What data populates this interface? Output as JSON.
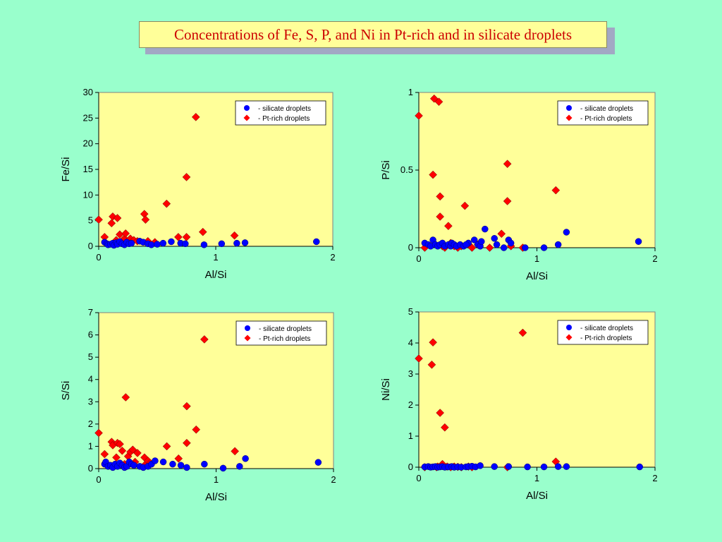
{
  "page": {
    "title": "Concentrations of Fe, S, P, and Ni in Pt-rich and in silicate droplets",
    "background": "#99ffcc",
    "plot_background": "#ffff99",
    "title_color": "#cc0000"
  },
  "chart_data": [
    {
      "type": "scatter",
      "xlabel": "Al/Si",
      "ylabel": "Fe/Si",
      "xlim": [
        0,
        2
      ],
      "ylim": [
        0,
        30
      ],
      "xticks": [
        "0",
        "1",
        "2"
      ],
      "yticks": [
        "0",
        "5",
        "10",
        "15",
        "20",
        "25",
        "30"
      ],
      "legend_position": "top-right",
      "series": [
        {
          "name": "- silicate droplets",
          "marker": "circle",
          "color": "#0000ff",
          "points": [
            [
              0.05,
              0.8
            ],
            [
              0.07,
              0.5
            ],
            [
              0.08,
              0.3
            ],
            [
              0.1,
              0.4
            ],
            [
              0.12,
              0.6
            ],
            [
              0.13,
              0.2
            ],
            [
              0.15,
              0.7
            ],
            [
              0.16,
              0.4
            ],
            [
              0.18,
              0.9
            ],
            [
              0.2,
              0.5
            ],
            [
              0.22,
              0.3
            ],
            [
              0.24,
              0.8
            ],
            [
              0.26,
              0.5
            ],
            [
              0.28,
              0.6
            ],
            [
              0.35,
              1.0
            ],
            [
              0.38,
              0.8
            ],
            [
              0.42,
              0.5
            ],
            [
              0.45,
              0.3
            ],
            [
              0.5,
              0.4
            ],
            [
              0.55,
              0.6
            ],
            [
              0.62,
              0.9
            ],
            [
              0.7,
              0.6
            ],
            [
              0.74,
              0.5
            ],
            [
              0.9,
              0.3
            ],
            [
              1.05,
              0.5
            ],
            [
              1.18,
              0.6
            ],
            [
              1.25,
              0.7
            ],
            [
              1.86,
              0.9
            ]
          ]
        },
        {
          "name": "- Pt-rich droplets",
          "marker": "diamond",
          "color": "#ff0000",
          "points": [
            [
              0.0,
              5.2
            ],
            [
              0.05,
              1.8
            ],
            [
              0.11,
              4.5
            ],
            [
              0.12,
              5.8
            ],
            [
              0.15,
              1.2
            ],
            [
              0.16,
              5.5
            ],
            [
              0.18,
              2.3
            ],
            [
              0.2,
              1.0
            ],
            [
              0.22,
              1.5
            ],
            [
              0.23,
              2.5
            ],
            [
              0.25,
              0.8
            ],
            [
              0.27,
              1.5
            ],
            [
              0.3,
              1.2
            ],
            [
              0.33,
              1.0
            ],
            [
              0.39,
              6.3
            ],
            [
              0.4,
              5.2
            ],
            [
              0.42,
              1.0
            ],
            [
              0.48,
              0.8
            ],
            [
              0.58,
              8.3
            ],
            [
              0.68,
              1.8
            ],
            [
              0.75,
              1.8
            ],
            [
              0.75,
              13.5
            ],
            [
              0.83,
              25.2
            ],
            [
              0.89,
              2.8
            ],
            [
              1.16,
              2.1
            ]
          ]
        }
      ]
    },
    {
      "type": "scatter",
      "xlabel": "Al/Si",
      "ylabel": "P/Si",
      "xlim": [
        0,
        2
      ],
      "ylim": [
        0,
        1
      ],
      "xticks": [
        "0",
        "1",
        "2"
      ],
      "yticks": [
        "0",
        "0.5",
        "1"
      ],
      "legend_position": "top-right",
      "series": [
        {
          "name": "- silicate droplets",
          "marker": "circle",
          "color": "#0000ff",
          "points": [
            [
              0.05,
              0.03
            ],
            [
              0.08,
              0.02
            ],
            [
              0.1,
              0.01
            ],
            [
              0.12,
              0.05
            ],
            [
              0.14,
              0.02
            ],
            [
              0.16,
              0.01
            ],
            [
              0.18,
              0.02
            ],
            [
              0.2,
              0.03
            ],
            [
              0.22,
              0.01
            ],
            [
              0.25,
              0.02
            ],
            [
              0.27,
              0.01
            ],
            [
              0.28,
              0.03
            ],
            [
              0.3,
              0.02
            ],
            [
              0.32,
              0.01
            ],
            [
              0.35,
              0.02
            ],
            [
              0.38,
              0.01
            ],
            [
              0.42,
              0.03
            ],
            [
              0.4,
              0.02
            ],
            [
              0.47,
              0.05
            ],
            [
              0.5,
              0.02
            ],
            [
              0.52,
              0.01
            ],
            [
              0.53,
              0.04
            ],
            [
              0.56,
              0.12
            ],
            [
              0.64,
              0.06
            ],
            [
              0.66,
              0.02
            ],
            [
              0.72,
              0.0
            ],
            [
              0.76,
              0.05
            ],
            [
              0.78,
              0.03
            ],
            [
              0.9,
              0.0
            ],
            [
              1.06,
              0.0
            ],
            [
              1.18,
              0.02
            ],
            [
              1.25,
              0.1
            ],
            [
              1.86,
              0.04
            ]
          ]
        },
        {
          "name": "- Pt-rich droplets",
          "marker": "diamond",
          "color": "#ff0000",
          "points": [
            [
              0.0,
              0.85
            ],
            [
              0.05,
              0.0
            ],
            [
              0.12,
              0.47
            ],
            [
              0.13,
              0.96
            ],
            [
              0.17,
              0.94
            ],
            [
              0.18,
              0.33
            ],
            [
              0.18,
              0.2
            ],
            [
              0.2,
              0.01
            ],
            [
              0.22,
              0.0
            ],
            [
              0.25,
              0.14
            ],
            [
              0.27,
              0.03
            ],
            [
              0.3,
              0.01
            ],
            [
              0.33,
              0.0
            ],
            [
              0.36,
              0.01
            ],
            [
              0.39,
              0.27
            ],
            [
              0.42,
              0.02
            ],
            [
              0.45,
              0.0
            ],
            [
              0.5,
              0.02
            ],
            [
              0.6,
              0.0
            ],
            [
              0.7,
              0.09
            ],
            [
              0.75,
              0.54
            ],
            [
              0.75,
              0.3
            ],
            [
              0.78,
              0.01
            ],
            [
              0.88,
              0.0
            ],
            [
              1.16,
              0.37
            ]
          ]
        }
      ]
    },
    {
      "type": "scatter",
      "xlabel": "Al/Si",
      "ylabel": "S/Si",
      "xlim": [
        0,
        2
      ],
      "ylim": [
        0,
        7
      ],
      "xticks": [
        "0",
        "1",
        "2"
      ],
      "yticks": [
        "0",
        "1",
        "2",
        "3",
        "4",
        "5",
        "6",
        "7"
      ],
      "legend_position": "top-right",
      "series": [
        {
          "name": "- silicate droplets",
          "marker": "circle",
          "color": "#0000ff",
          "points": [
            [
              0.05,
              0.2
            ],
            [
              0.06,
              0.3
            ],
            [
              0.08,
              0.1
            ],
            [
              0.1,
              0.15
            ],
            [
              0.12,
              0.05
            ],
            [
              0.14,
              0.2
            ],
            [
              0.16,
              0.1
            ],
            [
              0.18,
              0.25
            ],
            [
              0.2,
              0.15
            ],
            [
              0.22,
              0.05
            ],
            [
              0.24,
              0.1
            ],
            [
              0.26,
              0.3
            ],
            [
              0.28,
              0.2
            ],
            [
              0.3,
              0.15
            ],
            [
              0.35,
              0.1
            ],
            [
              0.38,
              0.05
            ],
            [
              0.42,
              0.1
            ],
            [
              0.45,
              0.2
            ],
            [
              0.48,
              0.35
            ],
            [
              0.55,
              0.3
            ],
            [
              0.63,
              0.2
            ],
            [
              0.7,
              0.15
            ],
            [
              0.75,
              0.05
            ],
            [
              0.9,
              0.2
            ],
            [
              1.06,
              0.02
            ],
            [
              1.2,
              0.1
            ],
            [
              1.25,
              0.45
            ],
            [
              1.87,
              0.28
            ]
          ]
        },
        {
          "name": "- Pt-rich droplets",
          "marker": "diamond",
          "color": "#ff0000",
          "points": [
            [
              0.0,
              1.6
            ],
            [
              0.05,
              0.65
            ],
            [
              0.11,
              1.2
            ],
            [
              0.12,
              1.05
            ],
            [
              0.15,
              0.5
            ],
            [
              0.16,
              1.15
            ],
            [
              0.18,
              1.1
            ],
            [
              0.2,
              0.8
            ],
            [
              0.22,
              0.2
            ],
            [
              0.23,
              3.2
            ],
            [
              0.25,
              0.55
            ],
            [
              0.27,
              0.75
            ],
            [
              0.29,
              0.85
            ],
            [
              0.31,
              0.3
            ],
            [
              0.33,
              0.7
            ],
            [
              0.39,
              0.5
            ],
            [
              0.4,
              0.2
            ],
            [
              0.42,
              0.35
            ],
            [
              0.44,
              0.25
            ],
            [
              0.58,
              1.0
            ],
            [
              0.68,
              0.45
            ],
            [
              0.75,
              2.8
            ],
            [
              0.75,
              1.15
            ],
            [
              0.83,
              1.75
            ],
            [
              0.9,
              5.8
            ],
            [
              1.16,
              0.78
            ]
          ]
        }
      ]
    },
    {
      "type": "scatter",
      "xlabel": "Al/Si",
      "ylabel": "Ni/Si",
      "xlim": [
        0,
        2
      ],
      "ylim": [
        0,
        5
      ],
      "xticks": [
        "0",
        "1",
        "2"
      ],
      "yticks": [
        "0",
        "1",
        "2",
        "3",
        "4",
        "5"
      ],
      "legend_position": "top-right",
      "series": [
        {
          "name": "- silicate droplets",
          "marker": "circle",
          "color": "#0000ff",
          "points": [
            [
              0.05,
              0.01
            ],
            [
              0.08,
              0.02
            ],
            [
              0.1,
              0.0
            ],
            [
              0.12,
              0.01
            ],
            [
              0.14,
              0.02
            ],
            [
              0.16,
              0.0
            ],
            [
              0.18,
              0.01
            ],
            [
              0.2,
              0.02
            ],
            [
              0.22,
              0.0
            ],
            [
              0.25,
              0.01
            ],
            [
              0.28,
              0.02
            ],
            [
              0.3,
              0.0
            ],
            [
              0.33,
              0.01
            ],
            [
              0.36,
              0.0
            ],
            [
              0.4,
              0.01
            ],
            [
              0.42,
              0.02
            ],
            [
              0.45,
              0.03
            ],
            [
              0.48,
              0.01
            ],
            [
              0.52,
              0.05
            ],
            [
              0.64,
              0.02
            ],
            [
              0.76,
              0.02
            ],
            [
              0.92,
              0.01
            ],
            [
              1.06,
              0.01
            ],
            [
              1.18,
              0.02
            ],
            [
              1.25,
              0.02
            ],
            [
              1.87,
              0.01
            ]
          ]
        },
        {
          "name": "- Pt-rich droplets",
          "marker": "diamond",
          "color": "#ff0000",
          "points": [
            [
              0.0,
              3.5
            ],
            [
              0.05,
              0.0
            ],
            [
              0.11,
              3.3
            ],
            [
              0.12,
              4.02
            ],
            [
              0.15,
              0.0
            ],
            [
              0.16,
              0.02
            ],
            [
              0.18,
              1.75
            ],
            [
              0.19,
              0.05
            ],
            [
              0.2,
              0.1
            ],
            [
              0.22,
              1.28
            ],
            [
              0.24,
              0.02
            ],
            [
              0.27,
              0.0
            ],
            [
              0.3,
              0.02
            ],
            [
              0.33,
              0.01
            ],
            [
              0.36,
              0.0
            ],
            [
              0.42,
              0.02
            ],
            [
              0.45,
              0.0
            ],
            [
              0.75,
              0.0
            ],
            [
              0.88,
              4.33
            ],
            [
              1.16,
              0.18
            ]
          ]
        }
      ]
    }
  ]
}
